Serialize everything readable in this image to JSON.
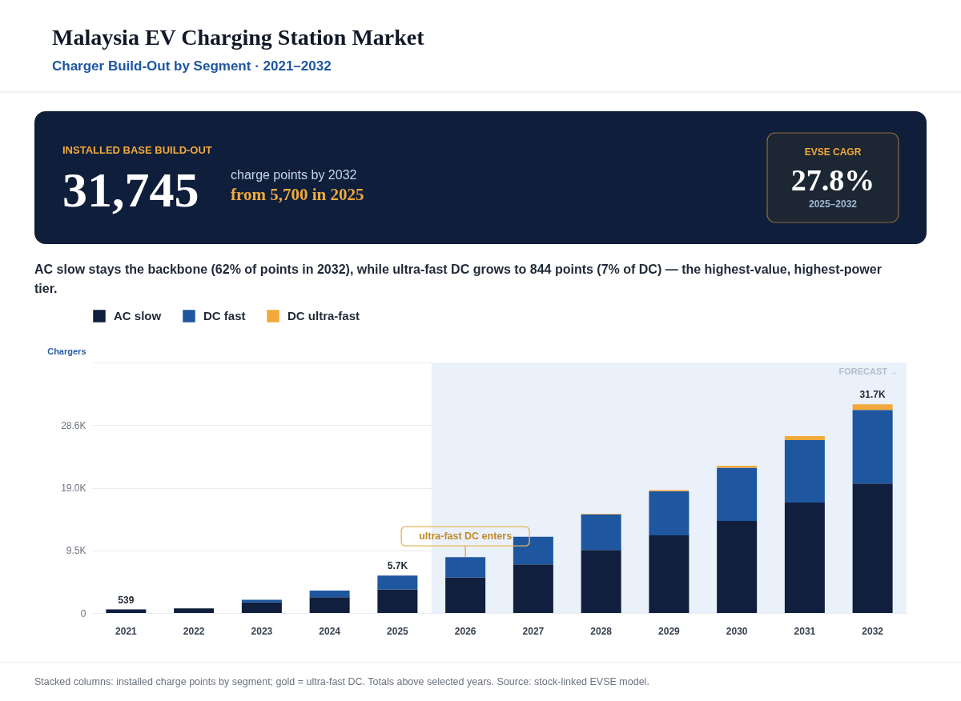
{
  "chart_data": [
    {
      "type": "other",
      "title": "INSTALLED BASE BUILD-OUT",
      "annotations": [
        "31,745",
        "charge points by 2032",
        "from 5,700 in 2025",
        "EVSE CAGR",
        "27.8%",
        "2025–2032"
      ]
    },
    {
      "type": "bar",
      "title": "Malaysia EV Charging Station Market",
      "subtitle": "Charger Build-Out by Segment · 2021–2032",
      "ylabel": "Chargers",
      "categories": [
        "2021",
        "2022",
        "2023",
        "2024",
        "2025",
        "2026",
        "2027",
        "2028",
        "2029",
        "2030",
        "2031",
        "2032"
      ],
      "stacked": true,
      "series": [
        {
          "name": "AC slow",
          "color": "#0f1f3d",
          "values": [
            539,
            700,
            1600,
            2400,
            3600,
            5400,
            7400,
            9600,
            11800,
            14000,
            16800,
            19700
          ]
        },
        {
          "name": "DC fast",
          "color": "#1e56a0",
          "values": [
            null,
            null,
            400,
            1000,
            2100,
            3100,
            4200,
            5400,
            6700,
            8100,
            9500,
            11200
          ]
        },
        {
          "name": "DC ultra-fast",
          "color": "#f2a93b",
          "values": [
            null,
            null,
            null,
            null,
            null,
            null,
            null,
            100,
            200,
            300,
            600,
            844
          ]
        }
      ],
      "ylim": [
        0,
        38100
      ],
      "yticks": [
        0,
        {
          "value": 9500,
          "label": "9.5K"
        },
        {
          "value": 19000,
          "label": "19.0K"
        },
        {
          "value": 28600,
          "label": "28.6K"
        },
        {
          "value": 38100,
          "label": null
        }
      ],
      "grid": "y",
      "legend": "top left",
      "totals": [
        "539",
        null,
        null,
        null,
        "5.7K",
        null,
        null,
        null,
        null,
        null,
        null,
        "31.7K"
      ],
      "bands": [
        {
          "axis": "x",
          "from": "2026",
          "to": "2032",
          "label": "FORECAST →",
          "color": "#ebf1fa"
        }
      ],
      "annotations": [
        "AC slow stays the backbone (62% of points in 2032), while ultra-fast DC grows to 844 points (7% of DC) — the highest-value, highest-power tier.",
        {
          "text": "ultra-fast DC enters",
          "x": "2026",
          "y": 8500
        },
        "Stacked columns: installed charge points by segment; gold = ultra-fast DC. Totals above selected years. Source: stock-linked EVSE model."
      ]
    }
  ]
}
